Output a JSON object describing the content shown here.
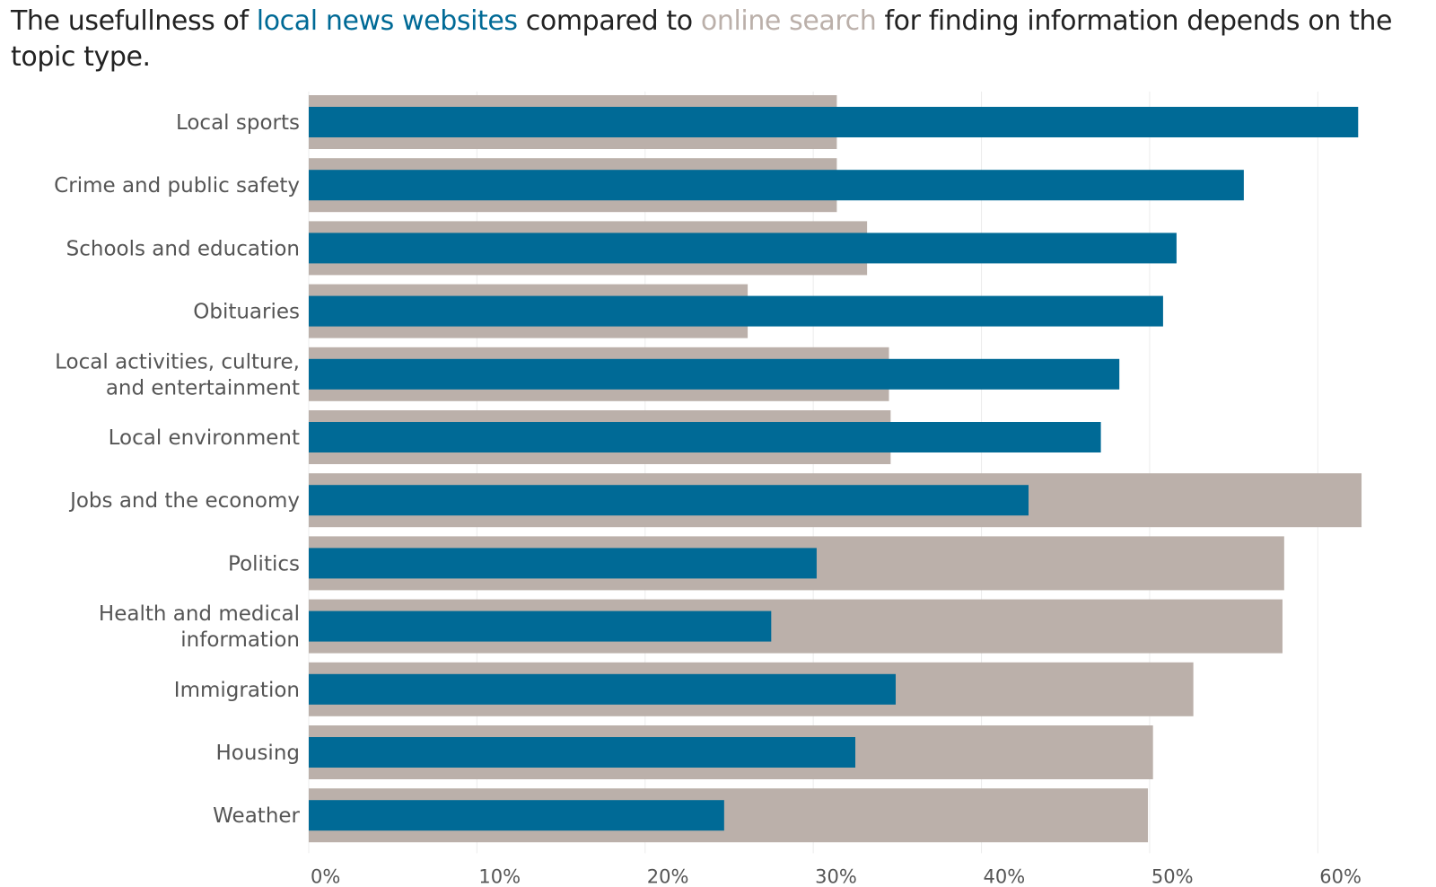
{
  "title": {
    "part1": "The usefullness of ",
    "local": "local news websites",
    "part2": " compared to ",
    "search": "online search",
    "part3": " for finding information depends on the topic type."
  },
  "colors": {
    "local_news": "#006a96",
    "online_search": "#bbb0aa",
    "text": "#555555"
  },
  "chart_data": {
    "type": "bar",
    "orientation": "horizontal",
    "categories": [
      [
        "Local sports"
      ],
      [
        "Crime and public safety"
      ],
      [
        "Schools and education"
      ],
      [
        "Obituaries"
      ],
      [
        "Local activities, culture,",
        "and entertainment"
      ],
      [
        "Local environment"
      ],
      [
        "Jobs and the economy"
      ],
      [
        "Politics"
      ],
      [
        "Health and medical",
        "information"
      ],
      [
        "Immigration"
      ],
      [
        "Housing"
      ],
      [
        "Weather"
      ]
    ],
    "series": [
      {
        "name": "online search",
        "values": [
          31.4,
          31.4,
          33.2,
          26.1,
          34.5,
          34.6,
          62.6,
          58.0,
          57.9,
          52.6,
          50.2,
          49.9
        ]
      },
      {
        "name": "local news websites",
        "values": [
          62.4,
          55.6,
          51.6,
          50.8,
          48.2,
          47.1,
          42.8,
          30.2,
          27.5,
          34.9,
          32.5,
          24.7
        ]
      }
    ],
    "xlim": [
      0,
      65
    ],
    "xticks": [
      0,
      10,
      20,
      30,
      40,
      50,
      60
    ],
    "tick_labels": [
      "0%",
      "10%",
      "20%",
      "30%",
      "40%",
      "50%",
      "60%"
    ],
    "grid": true
  }
}
